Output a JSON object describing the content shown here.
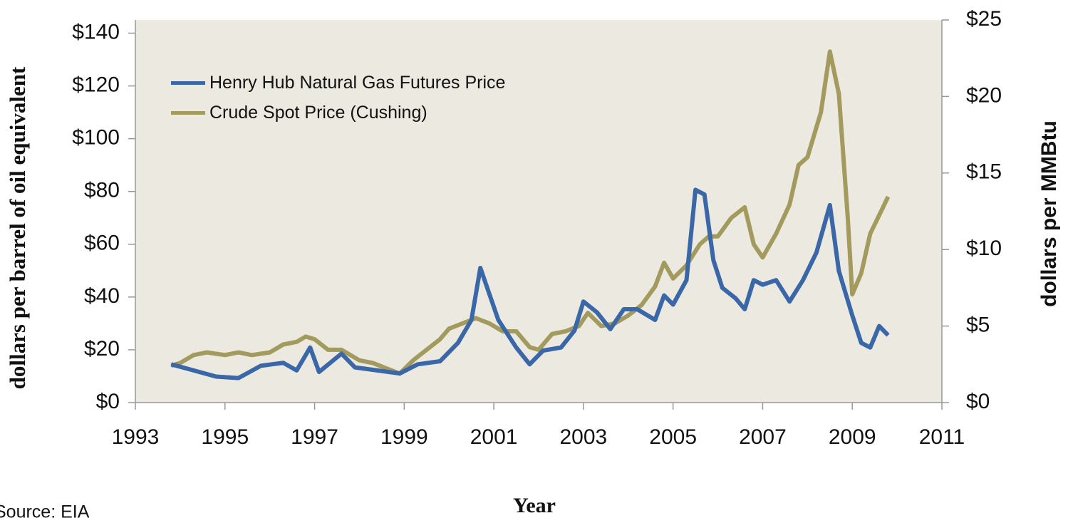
{
  "chart_data": {
    "type": "line",
    "x_label": "Year",
    "y_label": "dollars per barrel of oil equivalent",
    "y2_label": "dollars per MMBtu",
    "source": "Source: EIA",
    "xlim": [
      1993,
      2011
    ],
    "xticks": [
      1993,
      1995,
      1997,
      1999,
      2001,
      2003,
      2005,
      2007,
      2009,
      2011
    ],
    "ylim": [
      0,
      145
    ],
    "yticks": [
      {
        "value": 0,
        "label": "$0"
      },
      {
        "value": 20,
        "label": "$20"
      },
      {
        "value": 40,
        "label": "$40"
      },
      {
        "value": 60,
        "label": "$60"
      },
      {
        "value": 80,
        "label": "$80"
      },
      {
        "value": 100,
        "label": "$100"
      },
      {
        "value": 120,
        "label": "$120"
      },
      {
        "value": 140,
        "label": "$140"
      }
    ],
    "y2lim": [
      0,
      25
    ],
    "y2ticks": [
      {
        "value": 0,
        "label": "$0"
      },
      {
        "value": 5,
        "label": "$5"
      },
      {
        "value": 10,
        "label": "$10"
      },
      {
        "value": 15,
        "label": "$15"
      },
      {
        "value": 20,
        "label": "$20"
      },
      {
        "value": 25,
        "label": "$25"
      }
    ],
    "series": [
      {
        "name": "Henry Hub Natural Gas Futures Price",
        "color": "#3a67a8",
        "axis": "y2",
        "x": [
          1993.8,
          1994.3,
          1994.8,
          1995.3,
          1995.8,
          1996.3,
          1996.6,
          1996.9,
          1997.1,
          1997.6,
          1997.9,
          1998.4,
          1998.9,
          1999.3,
          1999.8,
          2000.2,
          2000.5,
          2000.7,
          2001.1,
          2001.5,
          2001.8,
          2002.1,
          2002.5,
          2002.8,
          2003.0,
          2003.3,
          2003.6,
          2003.9,
          2004.2,
          2004.6,
          2004.8,
          2005.0,
          2005.3,
          2005.5,
          2005.7,
          2005.9,
          2006.1,
          2006.4,
          2006.6,
          2006.8,
          2007.0,
          2007.3,
          2007.6,
          2007.9,
          2008.2,
          2008.5,
          2008.7,
          2009.0,
          2009.2,
          2009.4,
          2009.6,
          2009.8
        ],
        "values": [
          2.5,
          2.1,
          1.7,
          1.6,
          2.4,
          2.6,
          2.1,
          3.6,
          2.0,
          3.2,
          2.3,
          2.1,
          1.9,
          2.5,
          2.7,
          3.9,
          5.4,
          8.8,
          5.4,
          3.6,
          2.5,
          3.4,
          3.6,
          4.7,
          6.6,
          5.9,
          4.8,
          6.1,
          6.1,
          5.4,
          7.0,
          6.4,
          8.0,
          13.9,
          13.6,
          9.3,
          7.5,
          6.8,
          6.1,
          8.0,
          7.7,
          8.0,
          6.6,
          8.0,
          9.8,
          12.9,
          8.6,
          5.7,
          3.9,
          3.6,
          5.0,
          4.4
        ]
      },
      {
        "name": "Crude Spot Price (Cushing)",
        "color": "#a39a5e",
        "x": [
          1993.8,
          1994.0,
          1994.3,
          1994.6,
          1995.0,
          1995.3,
          1995.6,
          1996.0,
          1996.3,
          1996.6,
          1996.8,
          1997.0,
          1997.3,
          1997.6,
          1998.0,
          1998.3,
          1998.6,
          1998.9,
          1999.2,
          1999.5,
          1999.8,
          2000.0,
          2000.3,
          2000.6,
          2000.9,
          2001.2,
          2001.5,
          2001.8,
          2002.0,
          2002.3,
          2002.6,
          2002.9,
          2003.1,
          2003.4,
          2003.7,
          2004.0,
          2004.3,
          2004.6,
          2004.8,
          2005.0,
          2005.3,
          2005.6,
          2005.8,
          2006.0,
          2006.3,
          2006.6,
          2006.8,
          2007.0,
          2007.3,
          2007.6,
          2007.8,
          2008.0,
          2008.3,
          2008.5,
          2008.7,
          2008.9,
          2009.0,
          2009.2,
          2009.4,
          2009.6,
          2009.8
        ],
        "values": [
          14,
          15,
          18,
          19,
          18,
          19,
          18,
          19,
          22,
          23,
          25,
          24,
          20,
          20,
          16,
          15,
          13,
          11,
          16,
          20,
          24,
          28,
          30,
          32,
          30,
          27,
          27,
          21,
          20,
          26,
          27,
          29,
          34,
          29,
          30,
          33,
          37,
          44,
          53,
          47,
          52,
          60,
          63,
          63,
          70,
          74,
          60,
          55,
          64,
          75,
          90,
          93,
          110,
          133,
          117,
          70,
          41,
          49,
          64,
          71,
          78
        ]
      }
    ]
  }
}
